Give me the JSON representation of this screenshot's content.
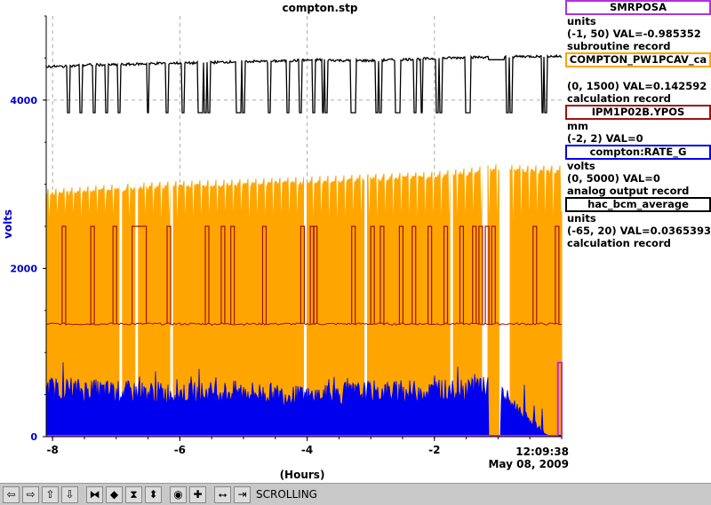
{
  "title": "compton.stp",
  "y_axis_label": "volts",
  "x_axis_label": "(Hours)",
  "timestamp": {
    "time": "12:09:38",
    "date": "May 08, 2009"
  },
  "toolbar": {
    "status": "SCROLLING",
    "buttons": [
      "⇦",
      "⇨",
      "⇧",
      "⇩",
      "⧓",
      "◆",
      "⧗",
      "⬍",
      "◉",
      "✚",
      "⭤",
      "⇥"
    ]
  },
  "legend": [
    {
      "name": "SMRPOSA",
      "color": "#b030e0",
      "line1": "units",
      "line2": "(-1, 50) VAL=-0.985352",
      "line3": "subroutine record"
    },
    {
      "name": "COMPTON_PW1PCAV_ca",
      "color": "#ffa500",
      "line1": "",
      "line2": "(0, 1500) VAL=0.142592",
      "line3": "calculation record"
    },
    {
      "name": "IPM1P02B.YPOS",
      "color": "#a01010",
      "line1": "mm",
      "line2": "(-2, 2) VAL=0",
      "line3": ""
    },
    {
      "name": "compton:RATE_G",
      "color": "#0000ee",
      "line1": "volts",
      "line2": "(0, 5000) VAL=0",
      "line3": "analog output record"
    },
    {
      "name": "hac_bcm_average",
      "color": "#000000",
      "line1": "units",
      "line2": "(-65, 20) VAL=0.0365393",
      "line3": "calculation record"
    }
  ],
  "chart_data": {
    "type": "line",
    "title": "compton.stp",
    "xlabel": "(Hours)",
    "ylabel": "volts",
    "xlim": [
      -8.1,
      0
    ],
    "ylim": [
      0,
      5000
    ],
    "x_ticks": [
      -8,
      -6,
      -4,
      -2
    ],
    "x_tick_labels": [
      "-8",
      "-6",
      "-4",
      "-2"
    ],
    "y_ticks": [
      0,
      2000,
      4000
    ],
    "y_tick_labels": [
      "0",
      "2000",
      "4000"
    ],
    "grid": true,
    "series": [
      {
        "name": "hac_bcm_average",
        "color": "#000000",
        "x": [
          -8.1,
          -7.8,
          -7.4,
          -7.0,
          -6.6,
          -6.2,
          -5.8,
          -5.4,
          -5.0,
          -4.6,
          -4.2,
          -3.8,
          -3.4,
          -3.0,
          -2.6,
          -2.2,
          -1.8,
          -1.4,
          -1.0,
          -0.6,
          -0.2,
          0
        ],
        "values": [
          4400,
          4400,
          4420,
          4420,
          4430,
          4440,
          4440,
          4450,
          4460,
          4460,
          4470,
          4480,
          4470,
          4470,
          4480,
          4490,
          4500,
          4510,
          4510,
          4520,
          4520,
          4520
        ],
        "dips_to": 3850
      },
      {
        "name": "COMPTON_PW1PCAV_ca",
        "color": "#ffa500",
        "x": [
          -8.1,
          -7.0,
          -6.0,
          -5.0,
          -4.0,
          -3.0,
          -2.0,
          -1.5,
          -1.0,
          -0.5,
          0
        ],
        "values": [
          2900,
          2960,
          3000,
          3020,
          3050,
          3080,
          3110,
          3150,
          3200,
          3180,
          3180
        ],
        "baseline": 2580
      },
      {
        "name": "IPM1P02B.YPOS",
        "color": "#a01010",
        "x": [
          -8.1,
          0
        ],
        "values": [
          1340,
          1340
        ],
        "spikes_to": 2500
      },
      {
        "name": "compton:RATE_G",
        "color": "#0000ee",
        "x": [
          -8.1,
          -7.0,
          -6.0,
          -5.0,
          -4.0,
          -3.0,
          -2.0,
          -1.2,
          -0.9,
          -0.2,
          0
        ],
        "values": [
          600,
          560,
          540,
          560,
          500,
          560,
          560,
          640,
          500,
          0,
          0
        ],
        "baseline": 380
      },
      {
        "name": "SMRPOSA",
        "color": "#b030e0",
        "x": [
          -8.1,
          -0.05,
          -0.05,
          0
        ],
        "values": [
          0,
          0,
          880,
          880
        ]
      }
    ]
  }
}
